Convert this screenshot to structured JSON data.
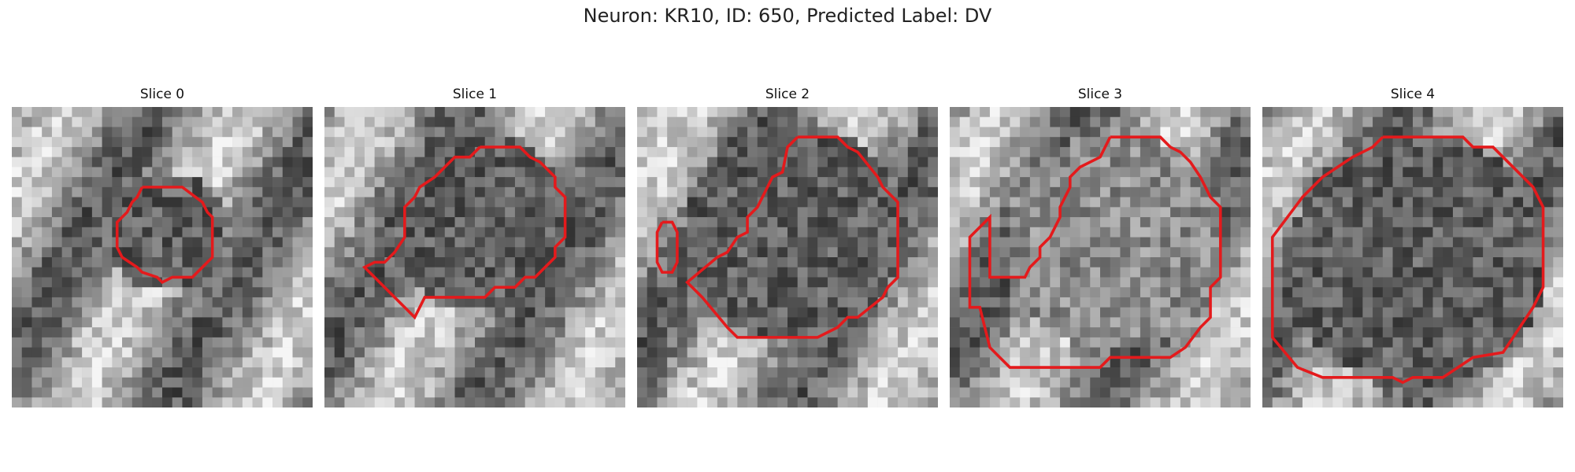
{
  "figure": {
    "title": "Neuron: KR10, ID: 650, Predicted Label: DV"
  },
  "slices": [
    {
      "label": "Slice 0",
      "content": "grayscale microscopy patch with red segmentation contour",
      "contour_color": "#e41a1c"
    },
    {
      "label": "Slice 1",
      "content": "grayscale microscopy patch with red segmentation contour",
      "contour_color": "#e41a1c"
    },
    {
      "label": "Slice 2",
      "content": "grayscale microscopy patch with red segmentation contour",
      "contour_color": "#e41a1c"
    },
    {
      "label": "Slice 3",
      "content": "grayscale microscopy patch with red segmentation contour",
      "contour_color": "#e41a1c"
    },
    {
      "label": "Slice 4",
      "content": "grayscale microscopy patch with red segmentation contour",
      "contour_color": "#e41a1c"
    }
  ]
}
